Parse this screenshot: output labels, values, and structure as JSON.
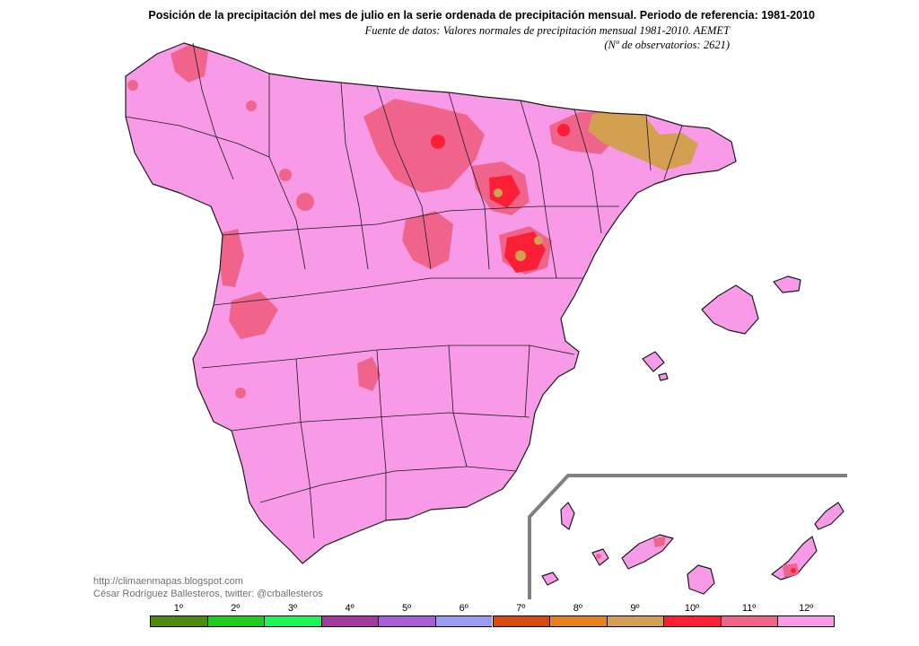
{
  "header": {
    "title": "Posición de la precipitación del mes de julio en la serie ordenada de precipitación mensual. Periodo de referencia: 1981-2010",
    "source": "Fuente de datos: Valores normales de precipitación mensual 1981-2010. AEMET",
    "stations": "(Nº de observatorios: 2621)"
  },
  "credits": {
    "url": "http://climaenmapas.blogspot.com",
    "author": "César Rodríguez Ballesteros, twitter: @crballesteros"
  },
  "legend": {
    "items": [
      {
        "label": "1º",
        "color": "#4c8a10"
      },
      {
        "label": "2º",
        "color": "#1fcc1f"
      },
      {
        "label": "3º",
        "color": "#1cf55a"
      },
      {
        "label": "4º",
        "color": "#a33a9e"
      },
      {
        "label": "5º",
        "color": "#a65fd6"
      },
      {
        "label": "6º",
        "color": "#9a9cf2"
      },
      {
        "label": "7º",
        "color": "#d94a10"
      },
      {
        "label": "8º",
        "color": "#e5821c"
      },
      {
        "label": "9º",
        "color": "#d2a050"
      },
      {
        "label": "10º",
        "color": "#fa1e37"
      },
      {
        "label": "11º",
        "color": "#f0648c"
      },
      {
        "label": "12º",
        "color": "#f89ae8"
      }
    ]
  },
  "map_colors": {
    "land": "#f89ae8",
    "rank11": "#f0648c",
    "rank10": "#fa1e37",
    "rank9": "#d2a050",
    "border": "#1a1a1a",
    "inset_frame": "#808080"
  }
}
